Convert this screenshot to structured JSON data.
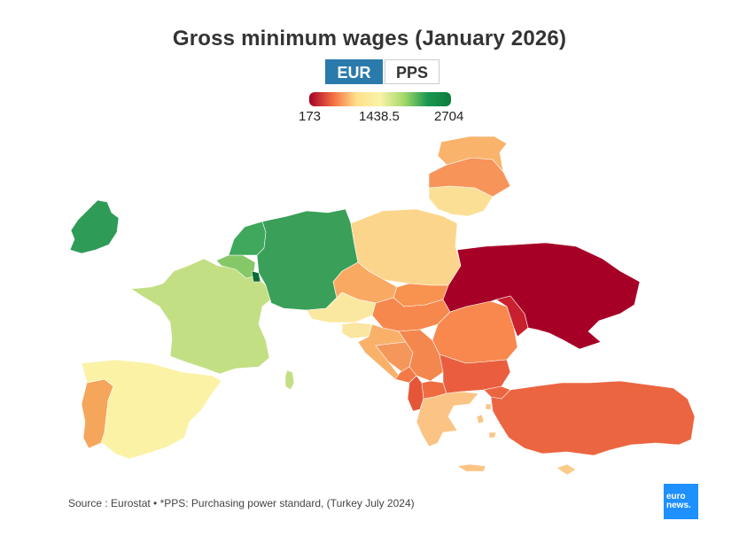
{
  "title": "Gross minimum wages (January 2026)",
  "toggle": {
    "eur": "EUR",
    "pps": "PPS",
    "selected": "EUR"
  },
  "legend": {
    "min": "173",
    "mid": "1438.5",
    "max": "2704"
  },
  "colors": {
    "accent": "#2a7aab",
    "low": "#a50026",
    "mid": "#f9f3a8",
    "high": "#1a9850"
  },
  "source": "Source : Eurostat • *PPS: Purchasing power standard, (Turkey July 2024)",
  "logo": {
    "line1": "euro",
    "line2": "news."
  }
}
